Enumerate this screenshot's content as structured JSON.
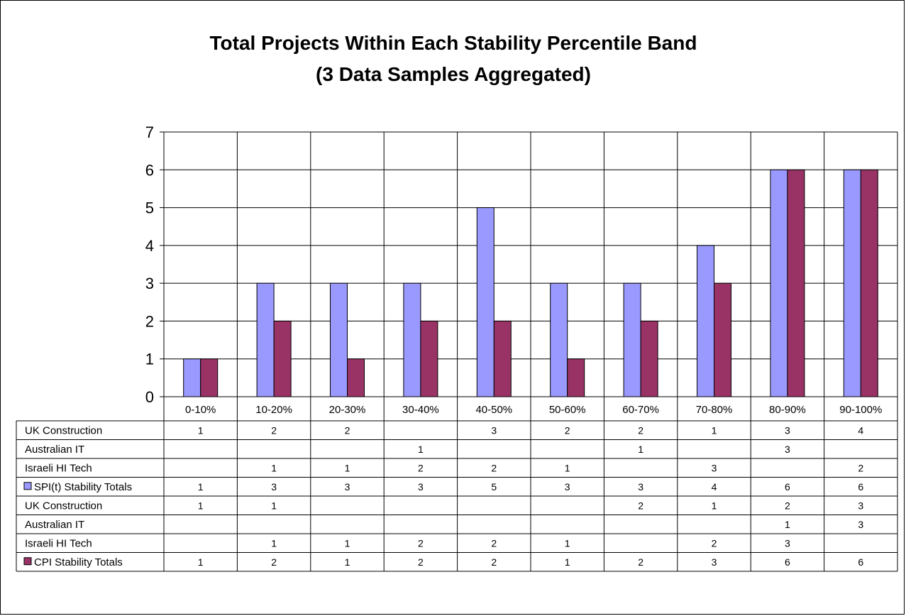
{
  "chart_data": {
    "type": "bar",
    "title_line1": "Total Projects Within Each Stability Percentile Band",
    "title_line2": "(3 Data Samples Aggregated)",
    "categories": [
      "0-10%",
      "10-20%",
      "20-30%",
      "30-40%",
      "40-50%",
      "50-60%",
      "60-70%",
      "70-80%",
      "80-90%",
      "90-100%"
    ],
    "ylim": [
      0,
      7
    ],
    "yticks": [
      "0",
      "1",
      "2",
      "3",
      "4",
      "5",
      "6",
      "7"
    ],
    "grid": true,
    "series": [
      {
        "name": "SPI(t) Stability Totals",
        "color": "#9999ff",
        "values": [
          1,
          3,
          3,
          3,
          5,
          3,
          3,
          4,
          6,
          6
        ]
      },
      {
        "name": "CPI Stability Totals",
        "color": "#993366",
        "values": [
          1,
          2,
          1,
          2,
          2,
          1,
          2,
          3,
          6,
          6
        ]
      }
    ],
    "table": [
      {
        "label": "UK Construction",
        "values": [
          "1",
          "2",
          "2",
          "",
          "3",
          "2",
          "2",
          "1",
          "3",
          "4"
        ]
      },
      {
        "label": "Australian IT",
        "values": [
          "",
          "",
          "",
          "1",
          "",
          "",
          "1",
          "",
          "3",
          ""
        ]
      },
      {
        "label": "Israeli HI Tech",
        "values": [
          "",
          "1",
          "1",
          "2",
          "2",
          "1",
          "",
          "3",
          "",
          "2"
        ]
      },
      {
        "label": "SPI(t) Stability Totals",
        "legend_color": "#9999ff",
        "values": [
          "1",
          "3",
          "3",
          "3",
          "5",
          "3",
          "3",
          "4",
          "6",
          "6"
        ]
      },
      {
        "label": "UK Construction",
        "values": [
          "1",
          "1",
          "",
          "",
          "",
          "",
          "2",
          "1",
          "2",
          "3"
        ]
      },
      {
        "label": "Australian IT",
        "values": [
          "",
          "",
          "",
          "",
          "",
          "",
          "",
          "",
          "1",
          "3"
        ]
      },
      {
        "label": "Israeli HI Tech",
        "values": [
          "",
          "1",
          "1",
          "2",
          "2",
          "1",
          "",
          "2",
          "3",
          ""
        ]
      },
      {
        "label": "CPI Stability Totals",
        "legend_color": "#993366",
        "values": [
          "1",
          "2",
          "1",
          "2",
          "2",
          "1",
          "2",
          "3",
          "6",
          "6"
        ]
      }
    ]
  }
}
